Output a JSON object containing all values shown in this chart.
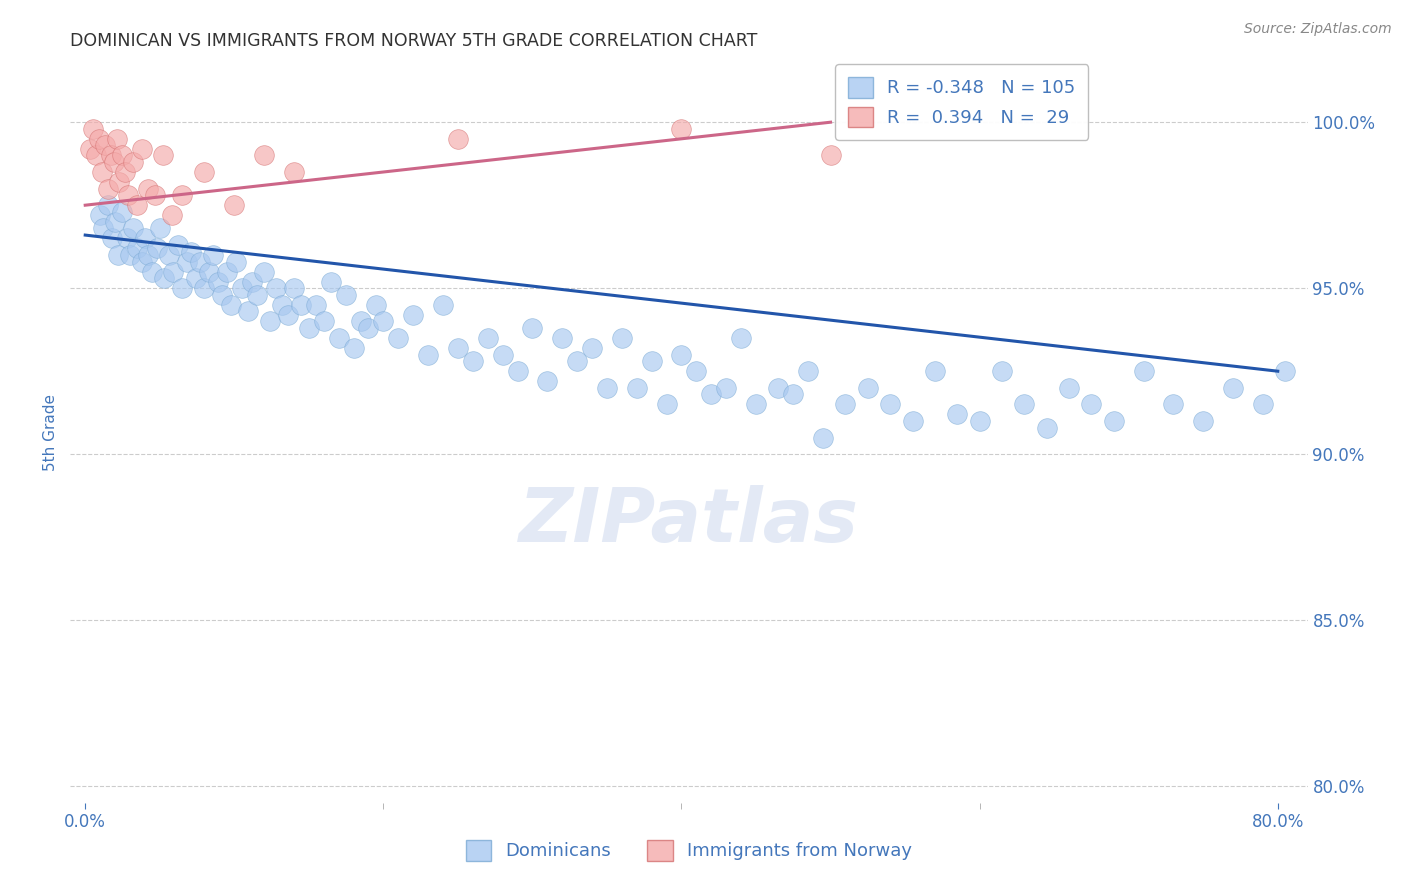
{
  "title": "DOMINICAN VS IMMIGRANTS FROM NORWAY 5TH GRADE CORRELATION CHART",
  "source": "Source: ZipAtlas.com",
  "ylabel": "5th Grade",
  "xlim": [
    -1.0,
    82.0
  ],
  "ylim": [
    79.5,
    101.8
  ],
  "yticks": [
    80.0,
    85.0,
    90.0,
    95.0,
    100.0
  ],
  "ytick_labels": [
    "80.0%",
    "85.0%",
    "90.0%",
    "95.0%",
    "100.0%"
  ],
  "xticks": [
    0.0,
    80.0
  ],
  "xtick_labels": [
    "0.0%",
    "80.0%"
  ],
  "xtick_minor": [
    20.0,
    40.0,
    60.0
  ],
  "legend_blue_r": "-0.348",
  "legend_blue_n": "105",
  "legend_pink_r": " 0.394",
  "legend_pink_n": " 29",
  "legend_label_blue": "Dominicans",
  "legend_label_pink": "Immigrants from Norway",
  "watermark_line1": "ZIP",
  "watermark_line2": "atlas",
  "blue_color": "#a8c8f0",
  "blue_edge_color": "#7baad4",
  "blue_line_color": "#2255aa",
  "pink_color": "#f4aaaa",
  "pink_edge_color": "#d47070",
  "pink_line_color": "#cc6688",
  "title_color": "#333333",
  "axis_label_color": "#4477bb",
  "source_color": "#888888",
  "blue_scatter_x": [
    1.0,
    1.2,
    1.5,
    1.8,
    2.0,
    2.2,
    2.5,
    2.8,
    3.0,
    3.2,
    3.5,
    3.8,
    4.0,
    4.2,
    4.5,
    4.8,
    5.0,
    5.3,
    5.6,
    5.9,
    6.2,
    6.5,
    6.8,
    7.1,
    7.4,
    7.7,
    8.0,
    8.3,
    8.6,
    8.9,
    9.2,
    9.5,
    9.8,
    10.1,
    10.5,
    10.9,
    11.2,
    11.5,
    12.0,
    12.4,
    12.8,
    13.2,
    13.6,
    14.0,
    14.5,
    15.0,
    15.5,
    16.0,
    16.5,
    17.0,
    17.5,
    18.0,
    18.5,
    19.0,
    19.5,
    20.0,
    21.0,
    22.0,
    23.0,
    24.0,
    25.0,
    26.0,
    27.0,
    28.0,
    29.0,
    30.0,
    31.0,
    32.0,
    33.0,
    34.0,
    35.0,
    36.0,
    37.0,
    38.0,
    39.0,
    40.0,
    41.0,
    42.0,
    43.0,
    44.0,
    45.0,
    46.5,
    47.5,
    48.5,
    49.5,
    51.0,
    52.5,
    54.0,
    55.5,
    57.0,
    58.5,
    60.0,
    61.5,
    63.0,
    64.5,
    66.0,
    67.5,
    69.0,
    71.0,
    73.0,
    75.0,
    77.0,
    79.0,
    80.5
  ],
  "blue_scatter_y": [
    97.2,
    96.8,
    97.5,
    96.5,
    97.0,
    96.0,
    97.3,
    96.5,
    96.0,
    96.8,
    96.2,
    95.8,
    96.5,
    96.0,
    95.5,
    96.2,
    96.8,
    95.3,
    96.0,
    95.5,
    96.3,
    95.0,
    95.8,
    96.1,
    95.3,
    95.8,
    95.0,
    95.5,
    96.0,
    95.2,
    94.8,
    95.5,
    94.5,
    95.8,
    95.0,
    94.3,
    95.2,
    94.8,
    95.5,
    94.0,
    95.0,
    94.5,
    94.2,
    95.0,
    94.5,
    93.8,
    94.5,
    94.0,
    95.2,
    93.5,
    94.8,
    93.2,
    94.0,
    93.8,
    94.5,
    94.0,
    93.5,
    94.2,
    93.0,
    94.5,
    93.2,
    92.8,
    93.5,
    93.0,
    92.5,
    93.8,
    92.2,
    93.5,
    92.8,
    93.2,
    92.0,
    93.5,
    92.0,
    92.8,
    91.5,
    93.0,
    92.5,
    91.8,
    92.0,
    93.5,
    91.5,
    92.0,
    91.8,
    92.5,
    90.5,
    91.5,
    92.0,
    91.5,
    91.0,
    92.5,
    91.2,
    91.0,
    92.5,
    91.5,
    90.8,
    92.0,
    91.5,
    91.0,
    92.5,
    91.5,
    91.0,
    92.0,
    91.5,
    92.5
  ],
  "pink_scatter_x": [
    0.3,
    0.5,
    0.7,
    0.9,
    1.1,
    1.3,
    1.5,
    1.7,
    1.9,
    2.1,
    2.3,
    2.5,
    2.7,
    2.9,
    3.2,
    3.5,
    3.8,
    4.2,
    4.7,
    5.2,
    5.8,
    6.5,
    8.0,
    10.0,
    12.0,
    14.0,
    25.0,
    40.0,
    50.0
  ],
  "pink_scatter_y": [
    99.2,
    99.8,
    99.0,
    99.5,
    98.5,
    99.3,
    98.0,
    99.0,
    98.8,
    99.5,
    98.2,
    99.0,
    98.5,
    97.8,
    98.8,
    97.5,
    99.2,
    98.0,
    97.8,
    99.0,
    97.2,
    97.8,
    98.5,
    97.5,
    99.0,
    98.5,
    99.5,
    99.8,
    99.0
  ],
  "blue_trend_x": [
    0.0,
    80.0
  ],
  "blue_trend_y": [
    96.6,
    92.5
  ],
  "pink_trend_x": [
    0.0,
    50.0
  ],
  "pink_trend_y": [
    97.5,
    100.0
  ]
}
